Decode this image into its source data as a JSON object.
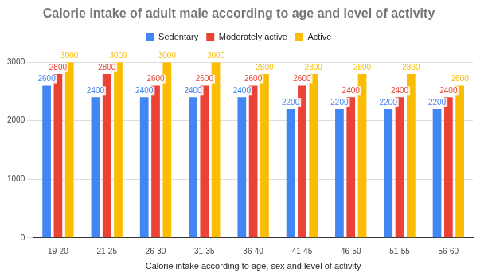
{
  "chart_data": {
    "type": "bar",
    "title": "Calorie intake of adult male according to age and level of activity",
    "x_label": "Calorie intake according to age, sex and level of activity",
    "categories": [
      "19-20",
      "21-25",
      "26-30",
      "31-35",
      "36-40",
      "41-45",
      "46-50",
      "51-55",
      "56-60"
    ],
    "series": [
      {
        "name": "Sedentary",
        "color": "#4285f4",
        "values": [
          2600,
          2400,
          2400,
          2400,
          2400,
          2200,
          2200,
          2200,
          2200
        ]
      },
      {
        "name": "Moderately active",
        "color": "#ea4335",
        "values": [
          2800,
          2800,
          2600,
          2600,
          2600,
          2600,
          2400,
          2400,
          2400
        ]
      },
      {
        "name": "Active",
        "color": "#fbbc04",
        "values": [
          3000,
          3000,
          3000,
          3000,
          2800,
          2800,
          2800,
          2800,
          2600
        ]
      }
    ],
    "ylim": [
      0,
      3000
    ],
    "yticks": [
      0,
      1000,
      2000,
      3000
    ],
    "grid": true,
    "legend": "top",
    "data_labels": true
  }
}
